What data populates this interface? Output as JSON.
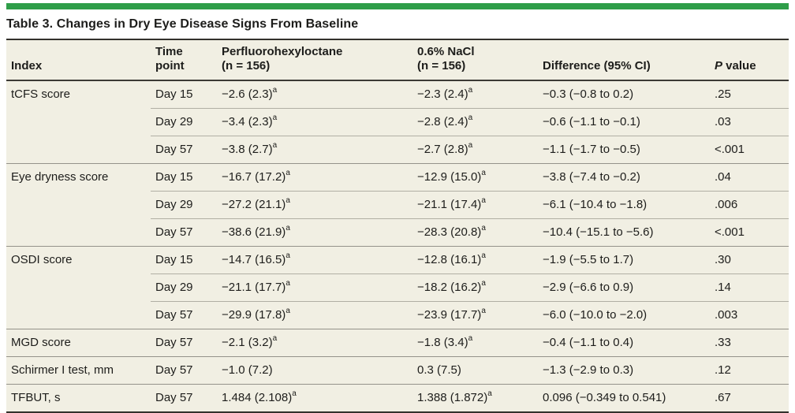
{
  "accent_color": "#2F9E49",
  "table": {
    "title": "Table 3. Changes in Dry Eye Disease Signs From Baseline",
    "header": {
      "index": "Index",
      "time_point": [
        "Time",
        "point"
      ],
      "pfho": [
        "Perfluorohexyloctane",
        "(n = 156)"
      ],
      "nacl": [
        "0.6% NaCl",
        "(n = 156)"
      ],
      "difference": "Difference (95% CI)",
      "pvalue_italic": "P",
      "pvalue_rest": " value"
    },
    "groups": [
      {
        "index": "tCFS score",
        "rows": [
          {
            "time": "Day 15",
            "pfho": "−2.6 (2.3)",
            "pfho_sup": "a",
            "nacl": "−2.3 (2.4)",
            "nacl_sup": "a",
            "diff": "−0.3 (−0.8 to 0.2)",
            "p": ".25"
          },
          {
            "time": "Day 29",
            "pfho": "−3.4 (2.3)",
            "pfho_sup": "a",
            "nacl": "−2.8 (2.4)",
            "nacl_sup": "a",
            "diff": "−0.6 (−1.1 to −0.1)",
            "p": ".03"
          },
          {
            "time": "Day 57",
            "pfho": "−3.8 (2.7)",
            "pfho_sup": "a",
            "nacl": "−2.7 (2.8)",
            "nacl_sup": "a",
            "diff": "−1.1 (−1.7 to −0.5)",
            "p": "<.001"
          }
        ]
      },
      {
        "index": "Eye dryness score",
        "rows": [
          {
            "time": "Day 15",
            "pfho": "−16.7 (17.2)",
            "pfho_sup": "a",
            "nacl": "−12.9 (15.0)",
            "nacl_sup": "a",
            "diff": "−3.8 (−7.4 to −0.2)",
            "p": ".04"
          },
          {
            "time": "Day 29",
            "pfho": "−27.2 (21.1)",
            "pfho_sup": "a",
            "nacl": "−21.1 (17.4)",
            "nacl_sup": "a",
            "diff": "−6.1 (−10.4 to −1.8)",
            "p": ".006"
          },
          {
            "time": "Day 57",
            "pfho": "−38.6 (21.9)",
            "pfho_sup": "a",
            "nacl": "−28.3 (20.8)",
            "nacl_sup": "a",
            "diff": "−10.4 (−15.1 to −5.6)",
            "p": "<.001"
          }
        ]
      },
      {
        "index": "OSDI score",
        "rows": [
          {
            "time": "Day 15",
            "pfho": "−14.7 (16.5)",
            "pfho_sup": "a",
            "nacl": "−12.8 (16.1)",
            "nacl_sup": "a",
            "diff": "−1.9 (−5.5 to 1.7)",
            "p": ".30"
          },
          {
            "time": "Day 29",
            "pfho": "−21.1 (17.7)",
            "pfho_sup": "a",
            "nacl": "−18.2 (16.2)",
            "nacl_sup": "a",
            "diff": "−2.9 (−6.6 to 0.9)",
            "p": ".14"
          },
          {
            "time": "Day 57",
            "pfho": "−29.9 (17.8)",
            "pfho_sup": "a",
            "nacl": "−23.9 (17.7)",
            "nacl_sup": "a",
            "diff": "−6.0 (−10.0 to −2.0)",
            "p": ".003"
          }
        ]
      },
      {
        "index": "MGD score",
        "rows": [
          {
            "time": "Day 57",
            "pfho": "−2.1 (3.2)",
            "pfho_sup": "a",
            "nacl": "−1.8 (3.4)",
            "nacl_sup": "a",
            "diff": "−0.4 (−1.1 to 0.4)",
            "p": ".33"
          }
        ]
      },
      {
        "index": "Schirmer I test, mm",
        "rows": [
          {
            "time": "Day 57",
            "pfho": "−1.0 (7.2)",
            "pfho_sup": "",
            "nacl": "0.3 (7.5)",
            "nacl_sup": "",
            "diff": "−1.3 (−2.9 to 0.3)",
            "p": ".12"
          }
        ]
      },
      {
        "index": "TFBUT, s",
        "rows": [
          {
            "time": "Day 57",
            "pfho": "1.484 (2.108)",
            "pfho_sup": "a",
            "nacl": "1.388 (1.872)",
            "nacl_sup": "a",
            "diff": "0.096 (−0.349 to 0.541)",
            "p": ".67"
          }
        ]
      }
    ]
  }
}
